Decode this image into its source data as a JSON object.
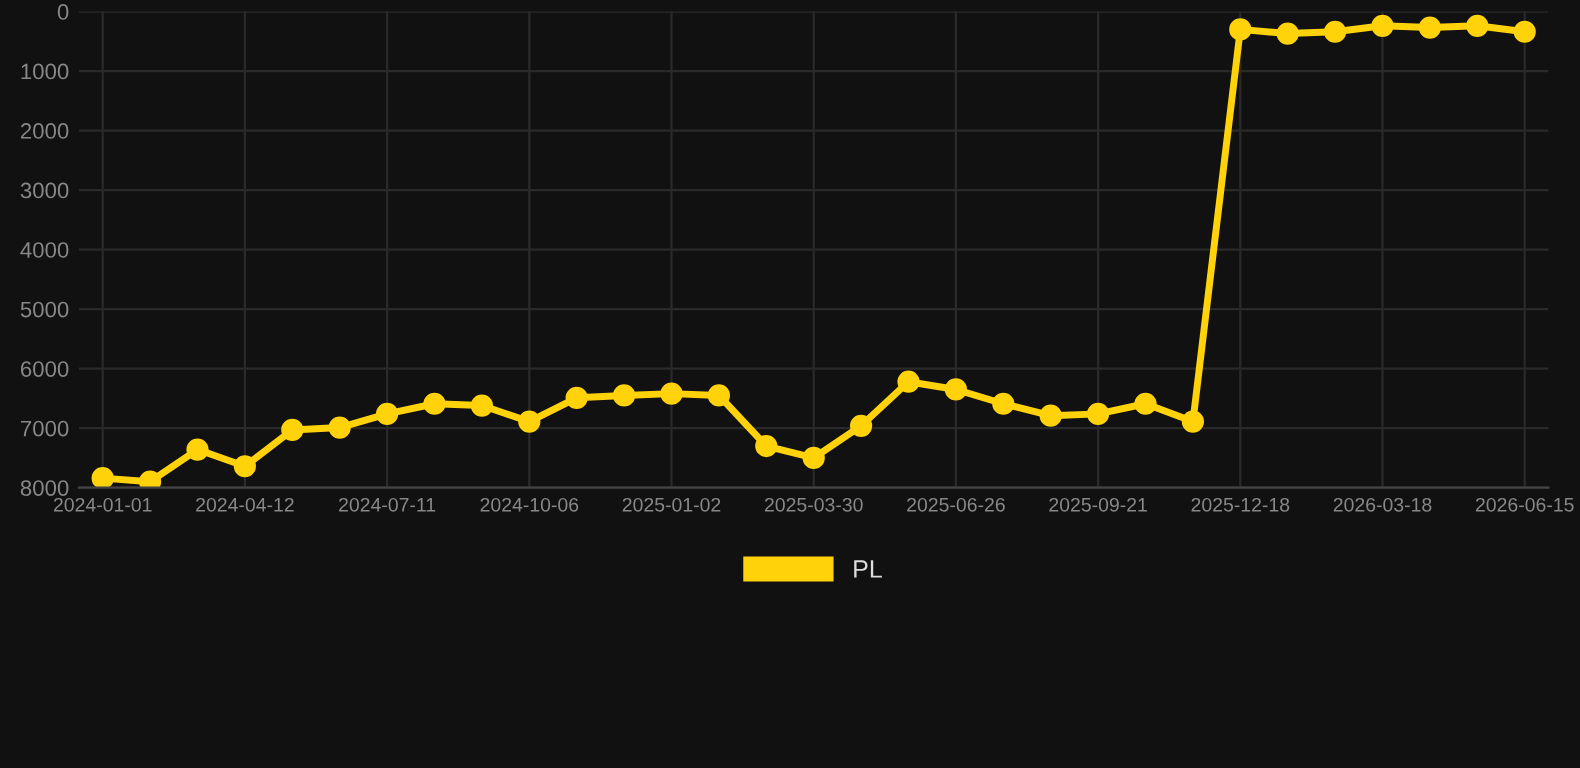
{
  "chart_data": {
    "type": "line",
    "categories": [
      "2024-01-01",
      null,
      null,
      "2024-04-12",
      null,
      null,
      "2024-07-11",
      null,
      null,
      "2024-10-06",
      null,
      null,
      "2025-01-02",
      null,
      null,
      "2025-03-30",
      null,
      null,
      "2025-06-26",
      null,
      null,
      "2025-09-21",
      null,
      null,
      "2025-12-18",
      null,
      null,
      "2026-03-18",
      null,
      null,
      "2026-06-15"
    ],
    "series": [
      {
        "name": "PL",
        "color": "#ffd20a",
        "values": [
          7840,
          7900,
          7360,
          7640,
          7030,
          6990,
          6760,
          6590,
          6620,
          6890,
          6490,
          6450,
          6420,
          6450,
          7300,
          7500,
          6960,
          6220,
          6350,
          6590,
          6790,
          6760,
          6590,
          6890,
          300,
          370,
          340,
          240,
          270,
          240,
          340
        ]
      }
    ],
    "ylim": [
      8000,
      0
    ],
    "yticks": [
      0,
      1000,
      2000,
      3000,
      4000,
      5000,
      6000,
      7000,
      8000
    ],
    "grid": true,
    "legend": "bottom",
    "marker": "circle",
    "line_style": "solid"
  }
}
